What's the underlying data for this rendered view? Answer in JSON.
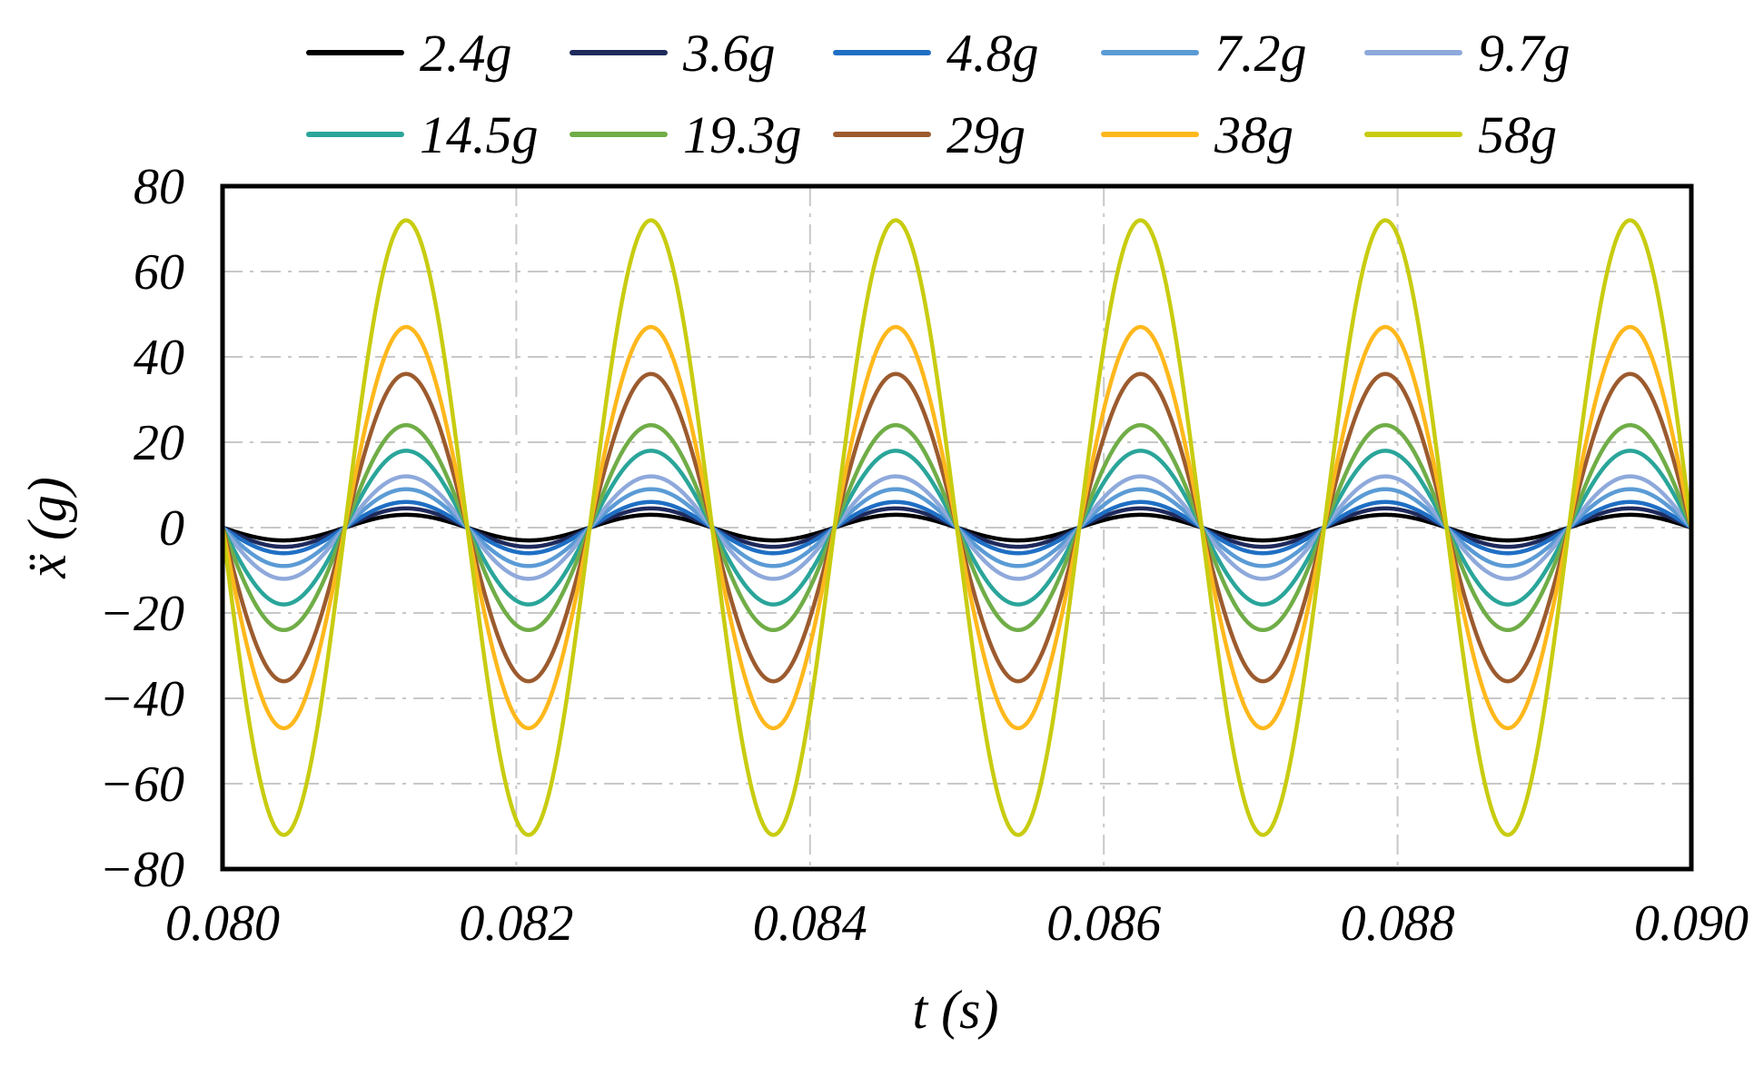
{
  "chart_data": {
    "type": "line",
    "title": "",
    "xlabel": "t (s)",
    "ylabel": "ẍ (g)",
    "xlim": [
      0.08,
      0.09
    ],
    "ylim": [
      -80,
      80
    ],
    "grid": true,
    "legend_position": "top",
    "frequency_hz": 600,
    "x_ticks": [
      {
        "value": 0.08,
        "label": "0.080"
      },
      {
        "value": 0.082,
        "label": "0.082"
      },
      {
        "value": 0.084,
        "label": "0.084"
      },
      {
        "value": 0.086,
        "label": "0.086"
      },
      {
        "value": 0.088,
        "label": "0.088"
      },
      {
        "value": 0.09,
        "label": "0.090"
      }
    ],
    "y_ticks": [
      {
        "value": 80,
        "label": "80"
      },
      {
        "value": 60,
        "label": "60"
      },
      {
        "value": 40,
        "label": "40"
      },
      {
        "value": 20,
        "label": "20"
      },
      {
        "value": 0,
        "label": "0"
      },
      {
        "value": -20,
        "label": "−20"
      },
      {
        "value": -40,
        "label": "−40"
      },
      {
        "value": -60,
        "label": "−60"
      },
      {
        "value": -80,
        "label": "−80"
      }
    ],
    "series": [
      {
        "name": "2.4g",
        "amplitude": 3,
        "color": "#000000"
      },
      {
        "name": "3.6g",
        "amplitude": 4.5,
        "color": "#1f2a5c"
      },
      {
        "name": "4.8g",
        "amplitude": 6,
        "color": "#1f6fc4"
      },
      {
        "name": "7.2g",
        "amplitude": 9,
        "color": "#5b9bd5"
      },
      {
        "name": "9.7g",
        "amplitude": 12,
        "color": "#8ea9db"
      },
      {
        "name": "14.5g",
        "amplitude": 18,
        "color": "#2aa59a"
      },
      {
        "name": "19.3g",
        "amplitude": 24,
        "color": "#70ad47"
      },
      {
        "name": "29g",
        "amplitude": 36,
        "color": "#9c5b2e"
      },
      {
        "name": "38g",
        "amplitude": 47,
        "color": "#ffb81c"
      },
      {
        "name": "58g",
        "amplitude": 72,
        "color": "#c8cc10"
      }
    ]
  }
}
